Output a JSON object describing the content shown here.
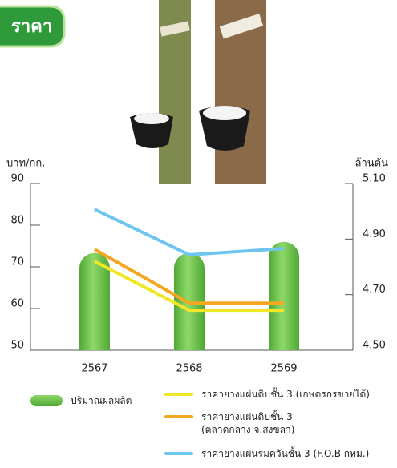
{
  "chart_data": {
    "type": "combo",
    "title": "ราคา",
    "ylabel": "บาท/กก.",
    "y2label": "ล้านตัน",
    "categories": [
      "2567",
      "2568",
      "2569"
    ],
    "ylim": [
      50,
      90
    ],
    "yticks": [
      50,
      60,
      70,
      80,
      90
    ],
    "y2lim": [
      4.5,
      5.1
    ],
    "y2ticks": [
      {
        "value": 4.5,
        "label": "4.50"
      },
      {
        "value": 4.7,
        "label": "4.70"
      },
      {
        "value": 4.9,
        "label": "4.90"
      },
      {
        "value": 5.1,
        "label": "5.10"
      }
    ],
    "series": [
      {
        "name": "ปริมาณผลผลิต",
        "type": "bar",
        "axis": "y2",
        "color": "#6cc04a",
        "values": [
          4.85,
          4.85,
          4.89
        ]
      },
      {
        "name": "ราคายางแผ่นดิบชั้น 3 (เกษตรกรขายได้)",
        "type": "line",
        "color": "#f2e626",
        "values": [
          71.3,
          59.6,
          59.6
        ]
      },
      {
        "name": "ราคายางแผ่นดิบชั้น 3\n(ตลาดกลาง จ.สงขลา)",
        "type": "line",
        "color": "#f5a623",
        "values": [
          74.2,
          61.3,
          61.3
        ]
      },
      {
        "name": "ราคายางแผ่นรมควันชั้น 3 (F.O.B กทม.)",
        "type": "line",
        "color": "#6ec6ee",
        "values": [
          83.8,
          72.9,
          74.4
        ]
      }
    ]
  }
}
